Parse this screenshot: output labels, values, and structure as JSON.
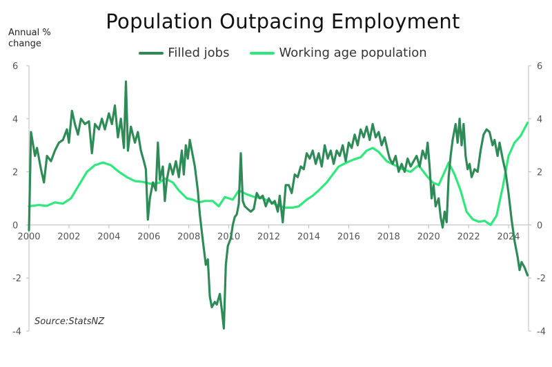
{
  "chart_data": {
    "type": "line",
    "title": "Population Outpacing Employment",
    "ylabel": "Annual % change",
    "source": "Source:StatsNZ",
    "ylim": [
      -4,
      6
    ],
    "xlim": [
      2000,
      2025
    ],
    "y_ticks": [
      -4,
      -2,
      0,
      2,
      4,
      6
    ],
    "y_tick_labels": [
      "-4",
      "-2",
      "0",
      "2",
      "4",
      "6"
    ],
    "x_ticks": [
      2000,
      2002,
      2004,
      2006,
      2008,
      2010,
      2012,
      2014,
      2016,
      2018,
      2020,
      2022,
      2024
    ],
    "x_tick_labels": [
      "2000",
      "2002",
      "2004",
      "2006",
      "2008",
      "2010",
      "2012",
      "2014",
      "2016",
      "2018",
      "2020",
      "2022",
      "2024"
    ],
    "legend_position": "top-center",
    "grid": false,
    "series": [
      {
        "name": "Filled jobs",
        "color": "#2e8b57",
        "points": [
          [
            2000.0,
            -0.2
          ],
          [
            2000.1,
            3.5
          ],
          [
            2000.3,
            2.6
          ],
          [
            2000.4,
            2.9
          ],
          [
            2000.6,
            2.1
          ],
          [
            2000.75,
            1.6
          ],
          [
            2000.9,
            2.6
          ],
          [
            2001.1,
            2.4
          ],
          [
            2001.3,
            2.8
          ],
          [
            2001.5,
            3.1
          ],
          [
            2001.7,
            3.2
          ],
          [
            2001.9,
            3.6
          ],
          [
            2002.0,
            3.1
          ],
          [
            2002.15,
            4.3
          ],
          [
            2002.3,
            3.8
          ],
          [
            2002.45,
            3.4
          ],
          [
            2002.6,
            4.0
          ],
          [
            2002.8,
            3.8
          ],
          [
            2003.0,
            3.9
          ],
          [
            2003.15,
            2.7
          ],
          [
            2003.3,
            3.8
          ],
          [
            2003.5,
            3.6
          ],
          [
            2003.65,
            4.0
          ],
          [
            2003.8,
            3.6
          ],
          [
            2004.0,
            4.2
          ],
          [
            2004.15,
            3.8
          ],
          [
            2004.3,
            4.5
          ],
          [
            2004.45,
            3.3
          ],
          [
            2004.6,
            4.0
          ],
          [
            2004.75,
            2.9
          ],
          [
            2004.85,
            5.4
          ],
          [
            2004.95,
            2.8
          ],
          [
            2005.1,
            3.7
          ],
          [
            2005.3,
            3.1
          ],
          [
            2005.45,
            3.5
          ],
          [
            2005.6,
            2.8
          ],
          [
            2005.75,
            2.4
          ],
          [
            2005.85,
            2.1
          ],
          [
            2005.95,
            0.2
          ],
          [
            2006.05,
            1.0
          ],
          [
            2006.2,
            1.6
          ],
          [
            2006.35,
            1.3
          ],
          [
            2006.45,
            3.1
          ],
          [
            2006.55,
            1.7
          ],
          [
            2006.7,
            2.2
          ],
          [
            2006.8,
            0.9
          ],
          [
            2006.9,
            1.7
          ],
          [
            2007.05,
            2.3
          ],
          [
            2007.2,
            1.9
          ],
          [
            2007.35,
            2.4
          ],
          [
            2007.5,
            1.8
          ],
          [
            2007.65,
            2.8
          ],
          [
            2007.75,
            1.9
          ],
          [
            2007.85,
            3.0
          ],
          [
            2007.95,
            2.5
          ],
          [
            2008.05,
            3.2
          ],
          [
            2008.15,
            2.8
          ],
          [
            2008.3,
            2.2
          ],
          [
            2008.45,
            1.3
          ],
          [
            2008.55,
            0.4
          ],
          [
            2008.7,
            -0.6
          ],
          [
            2008.85,
            -1.5
          ],
          [
            2008.95,
            -1.3
          ],
          [
            2009.05,
            -2.7
          ],
          [
            2009.15,
            -3.1
          ],
          [
            2009.3,
            -2.9
          ],
          [
            2009.4,
            -3.0
          ],
          [
            2009.55,
            -2.6
          ],
          [
            2009.65,
            -3.2
          ],
          [
            2009.75,
            -3.9
          ],
          [
            2009.85,
            -1.5
          ],
          [
            2009.95,
            -0.8
          ],
          [
            2010.1,
            -0.5
          ],
          [
            2010.2,
            0.0
          ],
          [
            2010.3,
            0.3
          ],
          [
            2010.4,
            0.4
          ],
          [
            2010.5,
            0.8
          ],
          [
            2010.6,
            2.7
          ],
          [
            2010.7,
            0.9
          ],
          [
            2010.8,
            0.7
          ],
          [
            2010.95,
            0.6
          ],
          [
            2011.1,
            0.5
          ],
          [
            2011.25,
            0.6
          ],
          [
            2011.4,
            1.2
          ],
          [
            2011.55,
            1.0
          ],
          [
            2011.7,
            1.1
          ],
          [
            2011.85,
            0.7
          ],
          [
            2012.0,
            1.0
          ],
          [
            2012.15,
            0.8
          ],
          [
            2012.3,
            0.9
          ],
          [
            2012.45,
            0.5
          ],
          [
            2012.55,
            1.1
          ],
          [
            2012.7,
            0.1
          ],
          [
            2012.85,
            1.5
          ],
          [
            2013.0,
            1.5
          ],
          [
            2013.15,
            1.2
          ],
          [
            2013.3,
            1.9
          ],
          [
            2013.45,
            1.8
          ],
          [
            2013.6,
            2.2
          ],
          [
            2013.75,
            2.1
          ],
          [
            2013.9,
            2.7
          ],
          [
            2014.05,
            2.5
          ],
          [
            2014.2,
            2.8
          ],
          [
            2014.35,
            2.3
          ],
          [
            2014.5,
            2.7
          ],
          [
            2014.65,
            2.2
          ],
          [
            2014.8,
            3.0
          ],
          [
            2014.95,
            2.5
          ],
          [
            2015.1,
            2.8
          ],
          [
            2015.25,
            2.3
          ],
          [
            2015.4,
            2.8
          ],
          [
            2015.55,
            2.6
          ],
          [
            2015.7,
            3.0
          ],
          [
            2015.85,
            2.4
          ],
          [
            2016.0,
            3.1
          ],
          [
            2016.15,
            2.9
          ],
          [
            2016.3,
            3.4
          ],
          [
            2016.45,
            3.0
          ],
          [
            2016.6,
            3.6
          ],
          [
            2016.75,
            3.3
          ],
          [
            2016.9,
            3.7
          ],
          [
            2017.05,
            3.2
          ],
          [
            2017.2,
            3.8
          ],
          [
            2017.35,
            3.3
          ],
          [
            2017.5,
            3.5
          ],
          [
            2017.65,
            3.0
          ],
          [
            2017.8,
            3.3
          ],
          [
            2017.95,
            2.8
          ],
          [
            2018.05,
            2.5
          ],
          [
            2018.2,
            2.3
          ],
          [
            2018.35,
            2.6
          ],
          [
            2018.5,
            2.0
          ],
          [
            2018.65,
            2.3
          ],
          [
            2018.8,
            2.0
          ],
          [
            2018.95,
            2.5
          ],
          [
            2019.1,
            2.2
          ],
          [
            2019.25,
            2.4
          ],
          [
            2019.4,
            2.6
          ],
          [
            2019.55,
            2.2
          ],
          [
            2019.7,
            2.8
          ],
          [
            2019.85,
            2.5
          ],
          [
            2019.95,
            3.1
          ],
          [
            2020.05,
            2.2
          ],
          [
            2020.15,
            1.0
          ],
          [
            2020.25,
            1.5
          ],
          [
            2020.35,
            0.7
          ],
          [
            2020.5,
            1.0
          ],
          [
            2020.6,
            0.3
          ],
          [
            2020.7,
            -0.1
          ],
          [
            2020.8,
            0.5
          ],
          [
            2020.9,
            0.1
          ],
          [
            2021.0,
            1.8
          ],
          [
            2021.1,
            2.6
          ],
          [
            2021.2,
            3.2
          ],
          [
            2021.35,
            3.8
          ],
          [
            2021.45,
            3.1
          ],
          [
            2021.55,
            4.0
          ],
          [
            2021.65,
            3.0
          ],
          [
            2021.75,
            3.8
          ],
          [
            2021.85,
            2.6
          ],
          [
            2021.95,
            2.1
          ],
          [
            2022.05,
            2.3
          ],
          [
            2022.15,
            1.8
          ],
          [
            2022.3,
            2.1
          ],
          [
            2022.45,
            2.0
          ],
          [
            2022.6,
            2.8
          ],
          [
            2022.75,
            3.4
          ],
          [
            2022.9,
            3.6
          ],
          [
            2023.05,
            3.5
          ],
          [
            2023.2,
            3.0
          ],
          [
            2023.3,
            3.2
          ],
          [
            2023.45,
            2.6
          ],
          [
            2023.55,
            3.1
          ],
          [
            2023.7,
            2.5
          ],
          [
            2023.85,
            2.0
          ],
          [
            2024.0,
            1.2
          ],
          [
            2024.15,
            0.2
          ],
          [
            2024.3,
            -0.6
          ],
          [
            2024.45,
            -1.2
          ],
          [
            2024.55,
            -1.7
          ],
          [
            2024.65,
            -1.4
          ],
          [
            2024.8,
            -1.6
          ],
          [
            2024.95,
            -1.9
          ]
        ]
      },
      {
        "name": "Working age population",
        "color": "#2ee87c",
        "points": [
          [
            2000.0,
            0.7
          ],
          [
            2000.5,
            0.75
          ],
          [
            2000.9,
            0.72
          ],
          [
            2001.3,
            0.85
          ],
          [
            2001.7,
            0.8
          ],
          [
            2002.1,
            1.0
          ],
          [
            2002.5,
            1.5
          ],
          [
            2002.9,
            2.0
          ],
          [
            2003.3,
            2.25
          ],
          [
            2003.7,
            2.35
          ],
          [
            2004.1,
            2.25
          ],
          [
            2004.5,
            2.0
          ],
          [
            2004.9,
            1.8
          ],
          [
            2005.3,
            1.65
          ],
          [
            2005.7,
            1.62
          ],
          [
            2006.1,
            1.55
          ],
          [
            2006.5,
            1.58
          ],
          [
            2006.8,
            1.75
          ],
          [
            2007.2,
            1.6
          ],
          [
            2007.5,
            1.3
          ],
          [
            2007.9,
            1.0
          ],
          [
            2008.2,
            0.95
          ],
          [
            2008.5,
            0.85
          ],
          [
            2008.8,
            0.9
          ],
          [
            2009.2,
            0.9
          ],
          [
            2009.5,
            0.7
          ],
          [
            2009.8,
            1.05
          ],
          [
            2010.2,
            0.95
          ],
          [
            2010.5,
            1.3
          ],
          [
            2010.9,
            1.15
          ],
          [
            2011.3,
            1.05
          ],
          [
            2011.7,
            1.0
          ],
          [
            2012.0,
            0.9
          ],
          [
            2012.4,
            0.75
          ],
          [
            2012.8,
            0.65
          ],
          [
            2013.2,
            0.65
          ],
          [
            2013.5,
            0.7
          ],
          [
            2013.9,
            0.95
          ],
          [
            2014.2,
            1.1
          ],
          [
            2014.5,
            1.3
          ],
          [
            2014.9,
            1.6
          ],
          [
            2015.2,
            1.9
          ],
          [
            2015.5,
            2.2
          ],
          [
            2015.9,
            2.35
          ],
          [
            2016.2,
            2.45
          ],
          [
            2016.6,
            2.55
          ],
          [
            2016.9,
            2.8
          ],
          [
            2017.2,
            2.9
          ],
          [
            2017.5,
            2.75
          ],
          [
            2017.9,
            2.4
          ],
          [
            2018.3,
            2.25
          ],
          [
            2018.7,
            2.1
          ],
          [
            2019.1,
            2.0
          ],
          [
            2019.5,
            2.25
          ],
          [
            2019.9,
            1.85
          ],
          [
            2020.2,
            1.6
          ],
          [
            2020.5,
            1.5
          ],
          [
            2020.8,
            2.0
          ],
          [
            2021.0,
            2.35
          ],
          [
            2021.3,
            1.9
          ],
          [
            2021.6,
            1.3
          ],
          [
            2021.9,
            0.5
          ],
          [
            2022.2,
            0.22
          ],
          [
            2022.5,
            0.12
          ],
          [
            2022.8,
            0.15
          ],
          [
            2023.1,
            0.0
          ],
          [
            2023.4,
            0.35
          ],
          [
            2023.7,
            1.4
          ],
          [
            2024.0,
            2.6
          ],
          [
            2024.3,
            3.1
          ],
          [
            2024.6,
            3.35
          ],
          [
            2024.95,
            3.85
          ]
        ]
      }
    ]
  }
}
